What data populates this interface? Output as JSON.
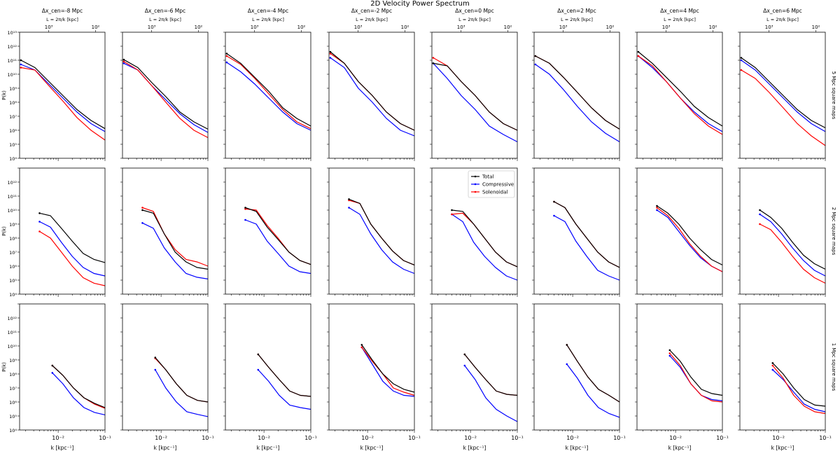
{
  "chart_data": {
    "type": "line",
    "title": "2D Velocity Power Spectrum",
    "x_scale": "log",
    "y_scale": "log",
    "xlim": [
      0.0015,
      0.1
    ],
    "ylim": [
      10000,
      10000000000000
    ],
    "xlabel": "k [kpc⁻¹]",
    "ylabel": "P(k)",
    "top_axis_label": "L = 2π/k [kpc]",
    "top_axis_ticks": [
      "10³",
      "10²"
    ],
    "x_ticks": [
      "10⁻²",
      "10⁻¹"
    ],
    "y_ticks": [
      "10⁴",
      "10⁵",
      "10⁶",
      "10⁷",
      "10⁸",
      "10⁹",
      "10¹⁰",
      "10¹¹",
      "10¹²",
      "10¹³"
    ],
    "column_titles": [
      "Δx_cen=-8 Mpc",
      "Δx_cen=-6 Mpc",
      "Δx_cen=-4 Mpc",
      "Δx_cen=-2 Mpc",
      "Δx_cen=0 Mpc",
      "Δx_cen=2 Mpc",
      "Δx_cen=4 Mpc",
      "Δx_cen=6 Mpc"
    ],
    "row_labels": [
      "5 Mpc square maps",
      "2 Mpc square maps",
      "1 Mpc square maps"
    ],
    "legend": {
      "placement": "upper-left of row 2, column 5",
      "entries": [
        "Total",
        "Compressive",
        "Solenoidal"
      ]
    },
    "series_colors": {
      "Total": "#000000",
      "Compressive": "#0000ff",
      "Solenoidal": "#ff0000"
    },
    "grid": false,
    "panels": [
      [
        {
          "kmin": 0.0016,
          "total": [
            100000000000.0,
            30000000000.0,
            3000000000.0,
            300000000.0,
            30000000.0,
            5000000.0,
            1300000.0
          ],
          "compressive": [
            50000000000.0,
            20000000000.0,
            2000000000.0,
            200000000.0,
            20000000.0,
            3000000.0,
            800000.0
          ],
          "solenoidal": [
            30000000000.0,
            20000000000.0,
            1500000000.0,
            120000000.0,
            8000000.0,
            1000000.0,
            200000.0
          ]
        },
        {
          "kmin": 0.0016,
          "total": [
            110000000000.0,
            30000000000.0,
            2500000000.0,
            250000000.0,
            20000000.0,
            4000000.0,
            1200000.0
          ],
          "compressive": [
            60000000000.0,
            20000000000.0,
            1500000000.0,
            150000000.0,
            15000000.0,
            2500000.0,
            700000.0
          ],
          "solenoidal": [
            80000000000.0,
            20000000000.0,
            1500000000.0,
            100000000.0,
            7000000.0,
            1000000.0,
            300000.0
          ]
        },
        {
          "kmin": 0.0016,
          "total": [
            300000000000.0,
            60000000000.0,
            6000000000.0,
            600000000.0,
            40000000.0,
            7000000.0,
            2000000.0
          ],
          "compressive": [
            70000000000.0,
            15000000000.0,
            2000000000.0,
            200000000.0,
            20000000.0,
            3000000.0,
            1000000.0
          ],
          "solenoidal": [
            200000000000.0,
            50000000000.0,
            5000000000.0,
            400000000.0,
            30000000.0,
            4000000.0,
            1300000.0
          ]
        },
        {
          "kmin": 0.0016,
          "total": [
            400000000000.0,
            60000000000.0,
            3000000000.0,
            300000000.0,
            20000000.0,
            3000000.0,
            1000000.0
          ],
          "compressive": [
            150000000000.0,
            30000000000.0,
            1000000000.0,
            100000000.0,
            7000000.0,
            1000000.0,
            400000.0
          ],
          "solenoidal": [
            300000000000.0,
            60000000000.0,
            3000000000.0,
            300000000.0,
            20000000.0,
            3000000.0,
            1000000.0
          ]
        },
        {
          "kmin": 0.0016,
          "total": [
            60000000000.0,
            40000000000.0,
            3000000000.0,
            300000000.0,
            20000000.0,
            3000000.0,
            1000000.0
          ],
          "compressive": [
            60000000000.0,
            5000000000.0,
            300000000.0,
            30000000.0,
            2000000.0,
            500000.0,
            150000.0
          ],
          "solenoidal": [
            150000000000.0,
            40000000000.0,
            3000000000.0,
            300000000.0,
            20000000.0,
            3000000.0,
            1000000.0
          ]
        },
        {
          "kmin": 0.0016,
          "total": [
            200000000000.0,
            60000000000.0,
            6000000000.0,
            500000000.0,
            40000000.0,
            5000000.0,
            1200000.0
          ],
          "compressive": [
            50000000000.0,
            10000000000.0,
            800000000.0,
            50000000.0,
            4000000.0,
            600000.0,
            150000.0
          ],
          "solenoidal": [
            200000000000.0,
            60000000000.0,
            6000000000.0,
            500000000.0,
            40000000.0,
            5000000.0,
            1200000.0
          ]
        },
        {
          "kmin": 0.0016,
          "total": [
            400000000000.0,
            60000000000.0,
            6000000000.0,
            600000000.0,
            50000000.0,
            8000000.0,
            2000000.0
          ],
          "compressive": [
            200000000000.0,
            30000000000.0,
            3000000000.0,
            200000000.0,
            20000000.0,
            3000000.0,
            800000.0
          ],
          "solenoidal": [
            200000000000.0,
            40000000000.0,
            3000000000.0,
            200000000.0,
            15000000.0,
            2000000.0,
            500000.0
          ]
        },
        {
          "kmin": 0.0016,
          "total": [
            150000000000.0,
            30000000000.0,
            3000000000.0,
            300000000.0,
            30000000.0,
            5000000.0,
            1500000.0
          ],
          "compressive": [
            100000000000.0,
            20000000000.0,
            2000000000.0,
            200000000.0,
            20000000.0,
            3000000.0,
            800000.0
          ],
          "solenoidal": [
            20000000000.0,
            5000000000.0,
            500000000.0,
            40000000.0,
            3000000.0,
            400000.0,
            80000.0
          ]
        }
      ],
      [
        {
          "kmin": 0.004,
          "total": [
            6000000000.0,
            4000000000.0,
            500000000.0,
            60000000.0,
            8000000.0,
            3000000.0,
            1800000.0
          ],
          "compressive": [
            1500000000.0,
            600000000.0,
            50000000.0,
            5000000.0,
            800000.0,
            300000.0,
            200000.0
          ],
          "solenoidal": [
            300000000.0,
            100000000.0,
            10000000.0,
            1000000.0,
            150000.0,
            60000.0,
            40000.0
          ]
        },
        {
          "kmin": 0.004,
          "total": [
            10000000000.0,
            6000000000.0,
            200000000.0,
            10000000.0,
            2000000.0,
            800000.0,
            600000.0
          ],
          "compressive": [
            1200000000.0,
            500000000.0,
            20000000.0,
            2000000.0,
            300000.0,
            160000.0,
            120000.0
          ],
          "solenoidal": [
            15000000000.0,
            8000000000.0,
            200000000.0,
            15000000.0,
            3000000.0,
            2000000.0,
            1000000.0
          ]
        },
        {
          "kmin": 0.004,
          "total": [
            15000000000.0,
            8000000000.0,
            600000000.0,
            80000000.0,
            10000000.0,
            2500000.0,
            1300000.0
          ],
          "compressive": [
            2000000000.0,
            1000000000.0,
            60000000.0,
            8000000.0,
            1000000.0,
            400000.0,
            300000.0
          ],
          "solenoidal": [
            12000000000.0,
            10000000000.0,
            800000000.0,
            100000000.0,
            10000000.0,
            2500000.0,
            1300000.0
          ]
        },
        {
          "kmin": 0.004,
          "total": [
            60000000000.0,
            30000000000.0,
            1000000000.0,
            100000000.0,
            12000000.0,
            2500000.0,
            1200000.0
          ],
          "compressive": [
            15000000000.0,
            5000000000.0,
            200000000.0,
            15000000.0,
            2000000.0,
            600000.0,
            300000.0
          ],
          "solenoidal": [
            50000000000.0,
            30000000000.0,
            1000000000.0,
            100000000.0,
            12000000.0,
            2500000.0,
            1200000.0
          ]
        },
        {
          "kmin": 0.004,
          "total": [
            10000000000.0,
            8000000000.0,
            1000000000.0,
            100000000.0,
            10000000.0,
            2000000.0,
            900000.0
          ],
          "compressive": [
            5000000000.0,
            1500000000.0,
            50000000.0,
            5000000.0,
            800000.0,
            200000.0,
            100000.0
          ],
          "solenoidal": [
            5000000000.0,
            6000000000.0,
            1000000000.0,
            100000000.0,
            10000000.0,
            2000000.0,
            900000.0
          ]
        },
        {
          "kmin": 0.004,
          "total": [
            40000000000.0,
            15000000000.0,
            1000000000.0,
            100000000.0,
            10000000.0,
            2000000.0,
            800000.0
          ],
          "compressive": [
            4000000000.0,
            1500000000.0,
            60000000.0,
            5000000.0,
            500000.0,
            200000.0,
            100000.0
          ],
          "solenoidal": [
            40000000000.0,
            15000000000.0,
            1000000000.0,
            100000000.0,
            10000000.0,
            2000000.0,
            800000.0
          ]
        },
        {
          "kmin": 0.004,
          "total": [
            20000000000.0,
            6000000000.0,
            1000000000.0,
            100000000.0,
            15000000.0,
            3000000.0,
            1200000.0
          ],
          "compressive": [
            10000000000.0,
            3000000000.0,
            300000000.0,
            30000000.0,
            4000000.0,
            1000000.0,
            400000.0
          ],
          "solenoidal": [
            15000000000.0,
            4000000000.0,
            500000000.0,
            40000000.0,
            5000000.0,
            1000000.0,
            400000.0
          ]
        },
        {
          "kmin": 0.004,
          "total": [
            10000000000.0,
            3000000000.0,
            500000000.0,
            50000000.0,
            6000000.0,
            1500000.0,
            600000.0
          ],
          "compressive": [
            5000000000.0,
            1500000000.0,
            200000000.0,
            20000000.0,
            2500000.0,
            500000.0,
            200000.0
          ],
          "solenoidal": [
            1000000000.0,
            400000000.0,
            50000000.0,
            5000000.0,
            600000.0,
            150000.0,
            60000.0
          ]
        }
      ],
      [
        {
          "kmin": 0.0075,
          "total": [
            400000000.0,
            80000000.0,
            10000000.0,
            2000000.0,
            800000.0,
            400000.0
          ],
          "compressive": [
            120000000.0,
            20000000.0,
            2000000.0,
            400000.0,
            180000.0,
            120000.0
          ],
          "solenoidal": [
            400000000.0,
            80000000.0,
            10000000.0,
            2000000.0,
            700000.0,
            350000.0
          ]
        },
        {
          "kmin": 0.0075,
          "total": [
            1500000000.0,
            200000000.0,
            20000000.0,
            3000000.0,
            1300000.0,
            1000000.0
          ],
          "compressive": [
            200000000.0,
            10000000.0,
            1000000.0,
            200000.0,
            130000.0,
            90000.0
          ],
          "solenoidal": [
            1300000000.0,
            200000000.0,
            20000000.0,
            3000000.0,
            1300000.0,
            1000000.0
          ]
        },
        {
          "kmin": 0.0075,
          "total": [
            2500000000.0,
            300000000.0,
            40000000.0,
            6000000.0,
            3000000.0,
            2500000.0
          ],
          "compressive": [
            200000000.0,
            30000000.0,
            3000000.0,
            600000.0,
            400000.0,
            300000.0
          ],
          "solenoidal": [
            2500000000.0,
            300000000.0,
            40000000.0,
            6000000.0,
            3000000.0,
            2500000.0
          ]
        },
        {
          "kmin": 0.0075,
          "total": [
            12000000000.0,
            1000000000.0,
            100000000.0,
            20000000.0,
            8000000.0,
            5000000.0
          ],
          "compressive": [
            8000000000.0,
            500000000.0,
            30000000.0,
            6000000.0,
            3000000.0,
            2500000.0
          ],
          "solenoidal": [
            8000000000.0,
            800000000.0,
            100000000.0,
            10000000.0,
            5000000.0,
            3000000.0
          ]
        },
        {
          "kmin": 0.0075,
          "total": [
            2500000000.0,
            300000000.0,
            40000000.0,
            6000000.0,
            3500000.0,
            3000000.0
          ],
          "compressive": [
            400000000.0,
            40000000.0,
            2000000.0,
            300000.0,
            100000.0,
            40000.0
          ],
          "solenoidal": [
            2500000000.0,
            300000000.0,
            40000000.0,
            6000000.0,
            3500000.0,
            3000000.0
          ]
        },
        {
          "kmin": 0.0075,
          "total": [
            12000000000.0,
            800000000.0,
            60000000.0,
            8000000.0,
            3000000.0,
            1000000.0
          ],
          "compressive": [
            500000000.0,
            50000000.0,
            3000000.0,
            400000.0,
            150000.0,
            80000.0
          ],
          "solenoidal": [
            12000000000.0,
            800000000.0,
            60000000.0,
            8000000.0,
            3000000.0,
            1000000.0
          ]
        },
        {
          "kmin": 0.0075,
          "total": [
            5000000000.0,
            800000000.0,
            60000000.0,
            8000000.0,
            4000000.0,
            3000000.0
          ],
          "compressive": [
            2000000000.0,
            300000000.0,
            20000000.0,
            3000000.0,
            1500000.0,
            1200000.0
          ],
          "solenoidal": [
            3000000000.0,
            400000000.0,
            20000000.0,
            3000000.0,
            1200000.0,
            1000000.0
          ]
        },
        {
          "kmin": 0.0075,
          "total": [
            600000000.0,
            100000000.0,
            10000000.0,
            1500000.0,
            600000.0,
            500000.0
          ],
          "compressive": [
            200000000.0,
            40000000.0,
            5000000.0,
            700000.0,
            300000.0,
            200000.0
          ],
          "solenoidal": [
            400000000.0,
            50000000.0,
            3000000.0,
            500000.0,
            200000.0,
            150000.0
          ]
        }
      ]
    ]
  }
}
